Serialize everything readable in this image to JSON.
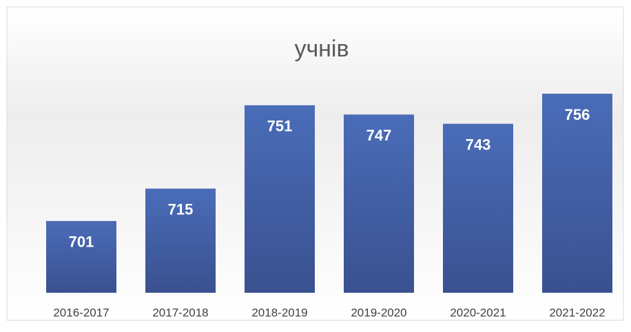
{
  "chart_data": {
    "type": "bar",
    "title": "учнів",
    "categories": [
      "2016-2017",
      "2017-2018",
      "2018-2019",
      "2019-2020",
      "2020-2021",
      "2021-2022"
    ],
    "values": [
      701,
      715,
      751,
      747,
      743,
      756
    ],
    "color": "#4565ad",
    "ylim": [
      670,
      760
    ]
  }
}
